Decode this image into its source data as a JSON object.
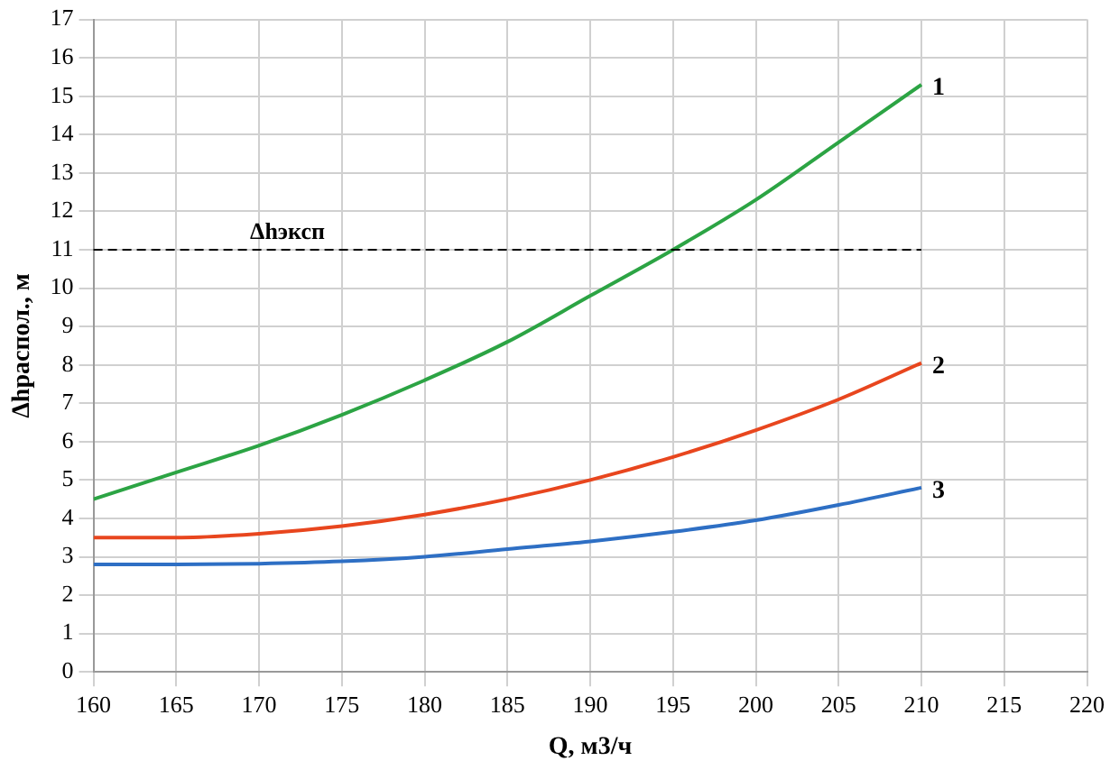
{
  "chart_data": {
    "type": "line",
    "xlabel": "Q, м3/ч",
    "ylabel": "Δhраспол., м",
    "x": [
      160,
      165,
      170,
      175,
      180,
      185,
      190,
      195,
      200,
      205,
      210
    ],
    "series": [
      {
        "name": "1",
        "color": "#2ca444",
        "values": [
          4.5,
          5.2,
          5.9,
          6.7,
          7.6,
          8.6,
          9.8,
          11.0,
          12.3,
          13.8,
          15.3
        ]
      },
      {
        "name": "2",
        "color": "#e8461e",
        "values": [
          3.5,
          3.5,
          3.6,
          3.8,
          4.1,
          4.5,
          5.0,
          5.6,
          6.3,
          7.1,
          8.05
        ]
      },
      {
        "name": "3",
        "color": "#2e6fc4",
        "values": [
          2.8,
          2.8,
          2.82,
          2.88,
          3.0,
          3.2,
          3.4,
          3.65,
          3.95,
          4.35,
          4.8
        ]
      }
    ],
    "xlim": [
      160,
      220
    ],
    "xticks": [
      160,
      165,
      170,
      175,
      180,
      185,
      190,
      195,
      200,
      205,
      210,
      215,
      220
    ],
    "ylim": [
      0,
      17
    ],
    "yticks": [
      0,
      1,
      2,
      3,
      4,
      5,
      6,
      7,
      8,
      9,
      10,
      11,
      12,
      13,
      14,
      15,
      16,
      17
    ],
    "ref_lines": [
      {
        "axis": "y",
        "value": 11,
        "label": "Δhэксп",
        "color": "#000000",
        "line_style": "dashed"
      }
    ],
    "grid": true,
    "legend": false,
    "marker": "none",
    "line_style": "solid"
  }
}
